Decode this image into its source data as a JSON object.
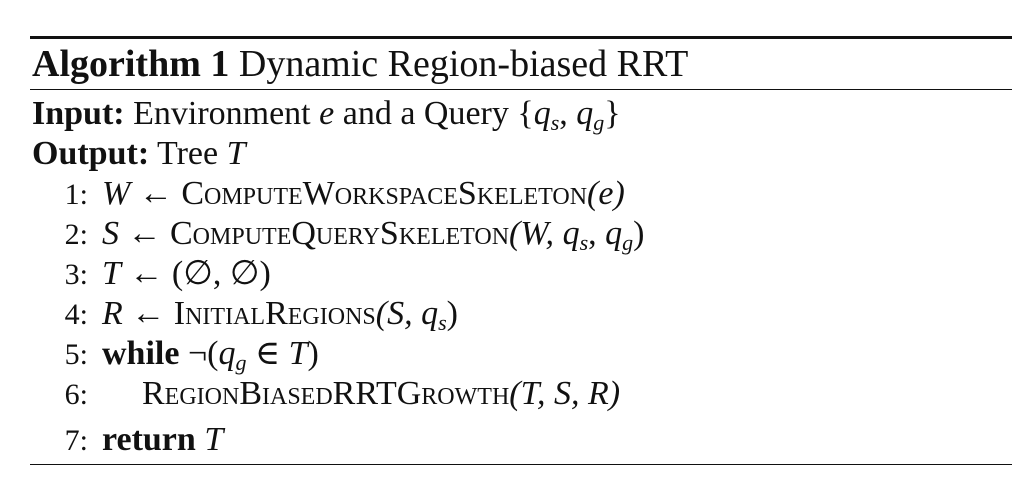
{
  "algorithm": {
    "label": "Algorithm 1",
    "title": "Dynamic Region-biased RRT"
  },
  "input": {
    "keyword": "Input:",
    "text": "Environment",
    "var_e": "e",
    "and_text": "and a Query",
    "lbrace": "{",
    "q": "q",
    "s": "s",
    "comma": ", ",
    "g": "g",
    "rbrace": "}"
  },
  "output": {
    "keyword": "Output:",
    "text": "Tree",
    "var_T": "T"
  },
  "lines": [
    {
      "num": "1:",
      "var": "W",
      "arrow": " ← ",
      "func": "ComputeWorkspaceSkeleton",
      "args": "(e)"
    },
    {
      "num": "2:",
      "var": "S",
      "arrow": " ← ",
      "func": "ComputeQuerySkeleton",
      "arg_open": "(W, ",
      "q": "q",
      "s": "s",
      "comma": ", ",
      "g": "g",
      "arg_close": ")"
    },
    {
      "num": "3:",
      "var": "T",
      "arrow": " ← ",
      "expr": "(∅, ∅)"
    },
    {
      "num": "4:",
      "var": "R",
      "arrow": " ← ",
      "func": "InitialRegions",
      "arg_open": "(S, ",
      "q": "q",
      "s": "s",
      "arg_close": ")"
    },
    {
      "num": "5:",
      "keyword": "while",
      "neg": " ¬(",
      "q": "q",
      "g": "g",
      "in": " ∈ ",
      "T": "T",
      "close": ")"
    },
    {
      "num": "6:",
      "func": "RegionBiasedRRTGrowth",
      "args": "(T, S, R)"
    },
    {
      "num": "7:",
      "keyword": "return",
      "var": "T"
    }
  ]
}
